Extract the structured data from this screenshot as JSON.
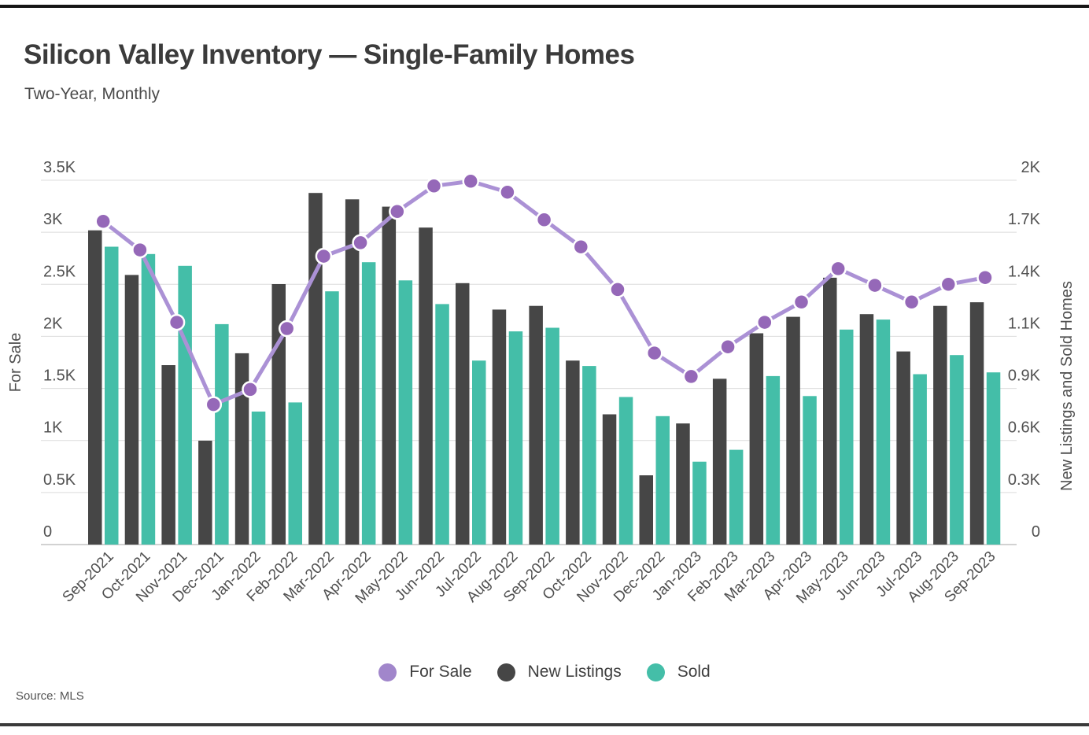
{
  "source_note": "Source: MLS",
  "chart_data": {
    "type": "bar",
    "title": "Silicon Valley Inventory — Single-Family Homes",
    "subtitle": "Two-Year, Monthly",
    "grid": true,
    "legend_position": "bottom",
    "categories": [
      "Sep-2021",
      "Oct-2021",
      "Nov-2021",
      "Dec-2021",
      "Jan-2022",
      "Feb-2022",
      "Mar-2022",
      "Apr-2022",
      "May-2022",
      "Jun-2022",
      "Jul-2022",
      "Aug-2022",
      "Sep-2022",
      "Oct-2022",
      "Nov-2022",
      "Dec-2022",
      "Jan-2023",
      "Feb-2023",
      "Mar-2023",
      "Apr-2023",
      "May-2023",
      "Jun-2023",
      "Jul-2023",
      "Aug-2023",
      "Sep-2023"
    ],
    "series": [
      {
        "name": "For Sale",
        "type": "line",
        "axis": "left",
        "color": "#ab91d5",
        "marker_color": "#9568b8",
        "legend_color": "#a186cb",
        "values": [
          3105,
          2830,
          2135,
          1345,
          1490,
          2075,
          2770,
          2900,
          3200,
          3445,
          3490,
          3385,
          3120,
          2860,
          2450,
          1840,
          1615,
          1900,
          2135,
          2330,
          2650,
          2490,
          2330,
          2500,
          2565
        ]
      },
      {
        "name": "New Listings",
        "type": "bar",
        "axis": "right",
        "color": "#464646",
        "legend_color": "#464646",
        "values": [
          1725,
          1480,
          985,
          570,
          1050,
          1430,
          1930,
          1895,
          1855,
          1740,
          1435,
          1290,
          1310,
          1010,
          715,
          380,
          665,
          910,
          1160,
          1250,
          1465,
          1265,
          1060,
          1310,
          1330
        ]
      },
      {
        "name": "Sold",
        "type": "bar",
        "axis": "right",
        "color": "#44bea8",
        "legend_color": "#44bea8",
        "values": [
          1635,
          1595,
          1530,
          1210,
          730,
          780,
          1390,
          1550,
          1450,
          1320,
          1010,
          1170,
          1190,
          980,
          810,
          705,
          455,
          520,
          925,
          815,
          1180,
          1235,
          935,
          1040,
          945
        ]
      }
    ],
    "left_axis": {
      "label": "For Sale",
      "min": 0,
      "max": 3500,
      "ticks": [
        "0",
        "0.5K",
        "1K",
        "1.5K",
        "2K",
        "2.5K",
        "3K",
        "3.5K"
      ]
    },
    "right_axis": {
      "label": "New Listings and Sold Homes",
      "min": 0,
      "max": 2000,
      "ticks": [
        "0",
        "0.3K",
        "0.6K",
        "0.9K",
        "1.1K",
        "1.4K",
        "1.7K",
        "2K"
      ]
    }
  }
}
